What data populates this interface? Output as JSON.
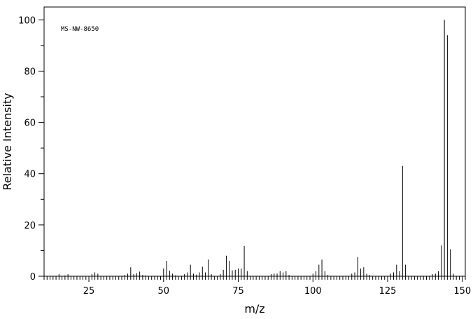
{
  "chart_data": {
    "type": "bar",
    "annotation": "MS-NW-8650",
    "xlabel": "m/z",
    "ylabel": "Relative Intensity",
    "xlim": [
      10,
      151
    ],
    "ylim": [
      0,
      105
    ],
    "x_ticks": [
      25,
      50,
      75,
      100,
      125,
      150
    ],
    "y_ticks": [
      0,
      20,
      40,
      60,
      80,
      100
    ],
    "grid": false,
    "series": [
      {
        "peaks": [
          [
            15,
            0.8
          ],
          [
            17,
            0.3
          ],
          [
            18,
            0.8
          ],
          [
            26,
            0.8
          ],
          [
            27,
            1.5
          ],
          [
            28,
            1.0
          ],
          [
            37,
            0.5
          ],
          [
            38,
            1.0
          ],
          [
            39,
            3.5
          ],
          [
            40,
            0.8
          ],
          [
            41,
            1.2
          ],
          [
            42,
            1.8
          ],
          [
            43,
            0.5
          ],
          [
            44,
            0.3
          ],
          [
            50,
            3.0
          ],
          [
            51,
            6.0
          ],
          [
            52,
            2.2
          ],
          [
            53,
            1.0
          ],
          [
            54,
            0.4
          ],
          [
            57,
            0.8
          ],
          [
            58,
            1.5
          ],
          [
            59,
            4.5
          ],
          [
            60,
            1.0
          ],
          [
            61,
            0.6
          ],
          [
            62,
            1.5
          ],
          [
            63,
            3.7
          ],
          [
            64,
            1.5
          ],
          [
            65,
            6.5
          ],
          [
            66,
            0.8
          ],
          [
            69,
            0.8
          ],
          [
            70,
            2.5
          ],
          [
            71,
            8.0
          ],
          [
            72,
            6.0
          ],
          [
            73,
            2.3
          ],
          [
            74,
            2.5
          ],
          [
            75,
            3.0
          ],
          [
            76,
            3.0
          ],
          [
            77,
            11.8
          ],
          [
            78,
            2.0
          ],
          [
            86,
            0.8
          ],
          [
            87,
            1.0
          ],
          [
            88,
            1.0
          ],
          [
            89,
            2.0
          ],
          [
            90,
            1.5
          ],
          [
            91,
            2.0
          ],
          [
            92,
            0.5
          ],
          [
            100,
            1.0
          ],
          [
            101,
            2.0
          ],
          [
            102,
            4.5
          ],
          [
            103,
            6.5
          ],
          [
            104,
            2.0
          ],
          [
            105,
            0.5
          ],
          [
            113,
            1.0
          ],
          [
            114,
            1.5
          ],
          [
            115,
            7.5
          ],
          [
            116,
            3.0
          ],
          [
            117,
            3.5
          ],
          [
            118,
            1.0
          ],
          [
            119,
            0.5
          ],
          [
            126,
            1.0
          ],
          [
            127,
            1.5
          ],
          [
            128,
            4.5
          ],
          [
            129,
            2.0
          ],
          [
            130,
            43.0
          ],
          [
            131,
            4.5
          ],
          [
            140,
            0.8
          ],
          [
            141,
            1.0
          ],
          [
            142,
            2.0
          ],
          [
            143,
            12.0
          ],
          [
            144,
            100.0
          ],
          [
            145,
            94.0
          ],
          [
            146,
            10.5
          ],
          [
            147,
            1.0
          ]
        ]
      }
    ],
    "colors": {
      "line": "#000000",
      "background": "#ffffff"
    }
  }
}
